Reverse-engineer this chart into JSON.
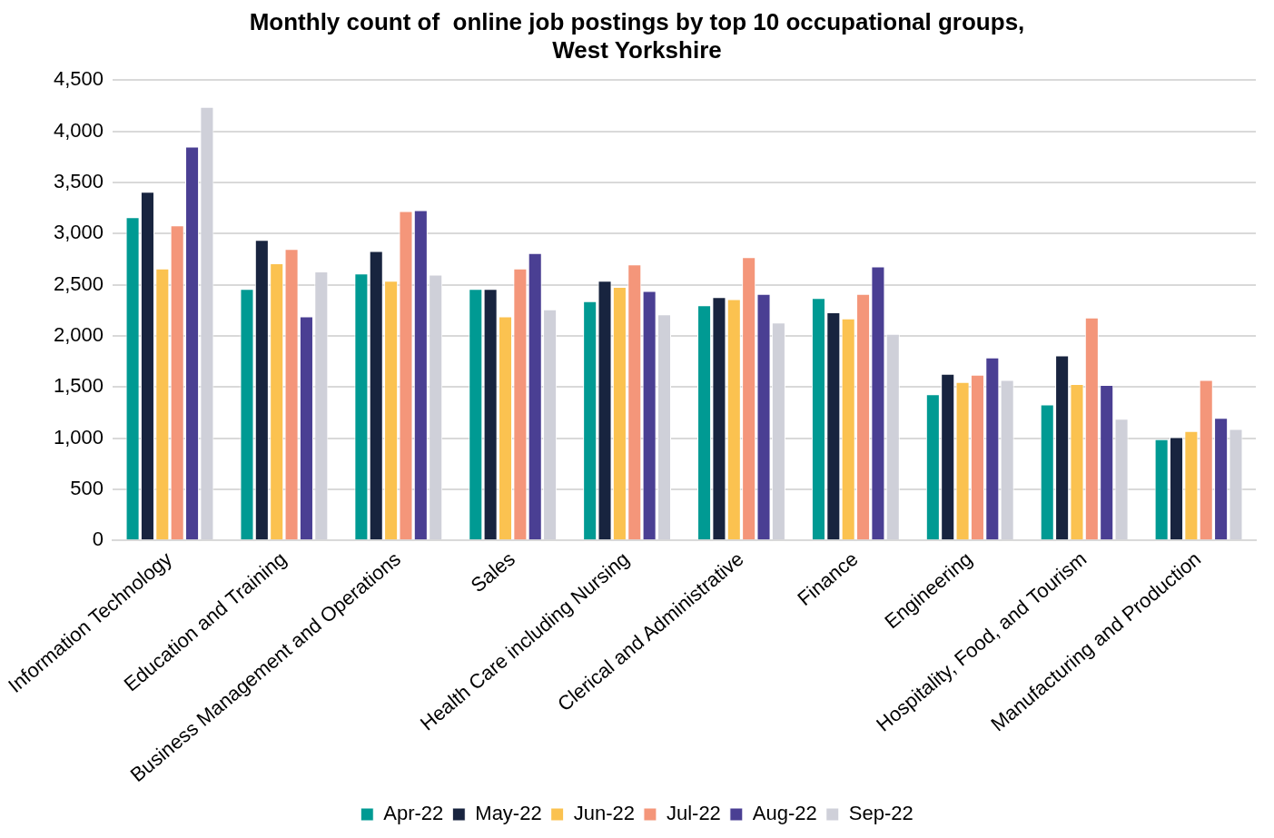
{
  "chart_data": {
    "type": "bar",
    "title": "Monthly count of  online job postings by top 10 occupational groups, West Yorkshire",
    "categories": [
      "Information Technology",
      "Education and Training",
      "Business Management and Operations",
      "Sales",
      "Health Care including Nursing",
      "Clerical and Administrative",
      "Finance",
      "Engineering",
      "Hospitality, Food, and Tourism",
      "Manufacturing and Production"
    ],
    "series": [
      {
        "name": "Apr-22",
        "color": "#009a93",
        "values": [
          3160,
          2460,
          2610,
          2460,
          2340,
          2300,
          2370,
          1430,
          1330,
          990
        ]
      },
      {
        "name": "May-22",
        "color": "#18243f",
        "values": [
          3410,
          2940,
          2830,
          2460,
          2540,
          2380,
          2230,
          1630,
          1810,
          1010
        ]
      },
      {
        "name": "Jun-22",
        "color": "#fbc250",
        "values": [
          2660,
          2710,
          2540,
          2190,
          2480,
          2360,
          2170,
          1550,
          1530,
          1070
        ]
      },
      {
        "name": "Jul-22",
        "color": "#f4967a",
        "values": [
          3080,
          2850,
          3220,
          2660,
          2700,
          2770,
          2410,
          1620,
          2180,
          1570
        ]
      },
      {
        "name": "Aug-22",
        "color": "#4a3f93",
        "values": [
          3850,
          2190,
          3230,
          2810,
          2440,
          2410,
          2680,
          1790,
          1520,
          1200
        ]
      },
      {
        "name": "Sep-22",
        "color": "#cfd0d9",
        "values": [
          4240,
          2630,
          2600,
          2260,
          2210,
          2130,
          2020,
          1570,
          1190,
          1090
        ]
      }
    ],
    "ylim": [
      0,
      4500
    ],
    "yticks": [
      {
        "value": 0,
        "label": "0"
      },
      {
        "value": 500,
        "label": "500"
      },
      {
        "value": 1000,
        "label": "1,000"
      },
      {
        "value": 1500,
        "label": "1,500"
      },
      {
        "value": 2000,
        "label": "2,000"
      },
      {
        "value": 2500,
        "label": "2,500"
      },
      {
        "value": 3000,
        "label": "3,000"
      },
      {
        "value": 3500,
        "label": "3,500"
      },
      {
        "value": 4000,
        "label": "4,000"
      },
      {
        "value": 4500,
        "label": "4,500"
      }
    ],
    "grid": "y",
    "legend": "bottom"
  }
}
